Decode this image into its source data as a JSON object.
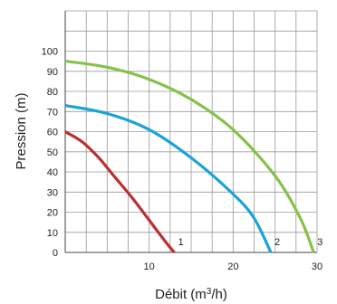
{
  "chart_data": {
    "type": "line",
    "xlabel": "Débit (m",
    "xlabel_sup": "3",
    "xlabel_end": "/h)",
    "ylabel": "Pression (m)",
    "xlim": [
      0,
      30
    ],
    "ylim": [
      0,
      120
    ],
    "x_ticks": [
      10,
      20,
      30
    ],
    "y_ticks": [
      0,
      10,
      20,
      30,
      40,
      50,
      60,
      70,
      80,
      90,
      100
    ],
    "grid": true,
    "colors": {
      "grid": "#9a9a9a",
      "axis": "#444444"
    },
    "series": [
      {
        "name": "1",
        "color": "#b83232",
        "x": [
          0,
          2,
          4,
          6,
          8,
          10,
          12,
          13.0
        ],
        "y": [
          60,
          55,
          47,
          37,
          27,
          16,
          5,
          0
        ]
      },
      {
        "name": "2",
        "color": "#1aa3d9",
        "x": [
          0,
          5,
          10,
          15,
          20,
          22.5,
          24.5
        ],
        "y": [
          73,
          69,
          61,
          47,
          29,
          17,
          0
        ]
      },
      {
        "name": "3",
        "color": "#86c14a",
        "x": [
          0,
          5,
          10,
          15,
          20,
          25,
          28,
          29.6
        ],
        "y": [
          95,
          92,
          86,
          76,
          61,
          38,
          17,
          0
        ]
      }
    ]
  }
}
